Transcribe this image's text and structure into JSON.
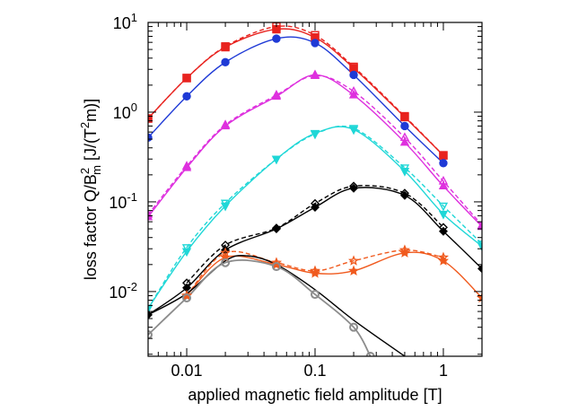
{
  "chart_data": {
    "type": "line",
    "title": "",
    "xlabel": "applied magnetic field amplitude [T]",
    "ylabel_parts": {
      "lead": "loss factor Q/B",
      "sup": "2",
      "sub": "m",
      "mid": " [J/(T",
      "sup2": "2",
      "tail": "m)]"
    },
    "x_scale": "log",
    "y_scale": "log",
    "xlim": [
      0.005,
      2
    ],
    "ylim": [
      0.0019,
      10
    ],
    "x_ticks": [
      {
        "value": 0.01,
        "label": "0.01"
      },
      {
        "value": 0.1,
        "label": "0.1"
      },
      {
        "value": 1,
        "label": "1"
      }
    ],
    "y_ticks": [
      {
        "value": 0.01,
        "base": "10",
        "exp": "-2"
      },
      {
        "value": 0.1,
        "base": "10",
        "exp": "-1"
      },
      {
        "value": 1,
        "base": "10",
        "exp": "0"
      },
      {
        "value": 10,
        "base": "10",
        "exp": "1"
      }
    ],
    "grid": false,
    "legend": "none",
    "series": [
      {
        "color": "#e8231f",
        "marker": "square",
        "style": "solid",
        "fill": true,
        "x": [
          0.005,
          0.01,
          0.02,
          0.05,
          0.1,
          0.2,
          0.5,
          1
        ],
        "y": [
          0.85,
          2.4,
          5.3,
          8.4,
          6.8,
          3.1,
          0.88,
          0.33
        ]
      },
      {
        "color": "#e8231f",
        "marker": "square",
        "style": "dashed",
        "fill": false,
        "x": [
          0.005,
          0.01,
          0.02,
          0.05,
          0.1,
          0.2,
          0.5,
          1
        ],
        "y": [
          0.85,
          2.4,
          5.4,
          9.0,
          7.2,
          3.2,
          0.9,
          0.33
        ]
      },
      {
        "color": "#1f3ad6",
        "marker": "circle",
        "style": "solid",
        "fill": true,
        "x": [
          0.005,
          0.01,
          0.02,
          0.05,
          0.1,
          0.2,
          0.5,
          1
        ],
        "y": [
          0.52,
          1.5,
          3.6,
          6.6,
          5.9,
          2.6,
          0.7,
          0.27
        ]
      },
      {
        "color": "#de30de",
        "marker": "triangle-up",
        "style": "solid",
        "fill": true,
        "x": [
          0.005,
          0.01,
          0.02,
          0.05,
          0.1,
          0.2,
          0.5,
          1,
          2
        ],
        "y": [
          0.068,
          0.24,
          0.7,
          1.5,
          2.6,
          1.55,
          0.46,
          0.15,
          0.053
        ]
      },
      {
        "color": "#de30de",
        "marker": "triangle-up",
        "style": "dashed",
        "fill": false,
        "x": [
          0.005,
          0.01,
          0.02,
          0.05,
          0.1,
          0.2,
          0.5,
          1,
          2
        ],
        "y": [
          0.072,
          0.25,
          0.72,
          1.55,
          2.55,
          1.7,
          0.52,
          0.17,
          0.055
        ]
      },
      {
        "color": "#1fd7d7",
        "marker": "triangle-down",
        "style": "solid",
        "fill": true,
        "x": [
          0.005,
          0.01,
          0.02,
          0.05,
          0.1,
          0.2,
          0.5,
          1,
          2
        ],
        "y": [
          0.0065,
          0.028,
          0.09,
          0.3,
          0.58,
          0.64,
          0.22,
          0.073,
          0.032
        ]
      },
      {
        "color": "#1fd7d7",
        "marker": "triangle-down",
        "style": "dashed",
        "fill": false,
        "x": [
          0.005,
          0.01,
          0.02,
          0.05,
          0.1,
          0.2,
          0.5,
          1,
          2
        ],
        "y": [
          0.0065,
          0.031,
          0.097,
          0.3,
          0.57,
          0.66,
          0.24,
          0.09,
          0.034
        ]
      },
      {
        "color": "#000000",
        "marker": "diamond",
        "style": "solid",
        "fill": true,
        "x": [
          0.005,
          0.01,
          0.02,
          0.05,
          0.1,
          0.2,
          0.5,
          1,
          2
        ],
        "y": [
          0.0055,
          0.011,
          0.029,
          0.05,
          0.087,
          0.142,
          0.118,
          0.047,
          0.018
        ]
      },
      {
        "color": "#000000",
        "marker": "diamond",
        "style": "dashed",
        "fill": false,
        "x": [
          0.01,
          0.02,
          0.05,
          0.1,
          0.2,
          0.5,
          1
        ],
        "y": [
          0.0125,
          0.033,
          0.051,
          0.096,
          0.15,
          0.125,
          0.052
        ]
      },
      {
        "color": "#f05a1e",
        "marker": "star",
        "style": "solid",
        "fill": true,
        "x": [
          0.01,
          0.02,
          0.05,
          0.1,
          0.2,
          0.5,
          1,
          2
        ],
        "y": [
          0.009,
          0.024,
          0.02,
          0.016,
          0.017,
          0.027,
          0.022,
          0.0085
        ]
      },
      {
        "color": "#f05a1e",
        "marker": "star",
        "style": "dashed",
        "fill": false,
        "x": [
          0.01,
          0.02,
          0.05,
          0.1,
          0.2,
          0.5,
          1
        ],
        "y": [
          0.009,
          0.027,
          0.021,
          0.017,
          0.022,
          0.029,
          0.024
        ]
      },
      {
        "color": "#000000",
        "marker": "none",
        "style": "solid",
        "fill": false,
        "x": [
          0.005,
          0.01,
          0.02,
          0.03,
          0.05,
          0.1,
          0.2,
          0.5
        ],
        "y": [
          0.0055,
          0.0095,
          0.022,
          0.025,
          0.02,
          0.0105,
          0.0048,
          0.0019
        ]
      },
      {
        "color": "#8c8c8c",
        "marker": "circle-open",
        "style": "solid",
        "fill": false,
        "x": [
          0.005,
          0.01,
          0.02,
          0.05,
          0.1,
          0.2,
          0.27
        ],
        "y": [
          0.0033,
          0.0085,
          0.021,
          0.019,
          0.0093,
          0.004,
          0.0019
        ]
      }
    ]
  }
}
